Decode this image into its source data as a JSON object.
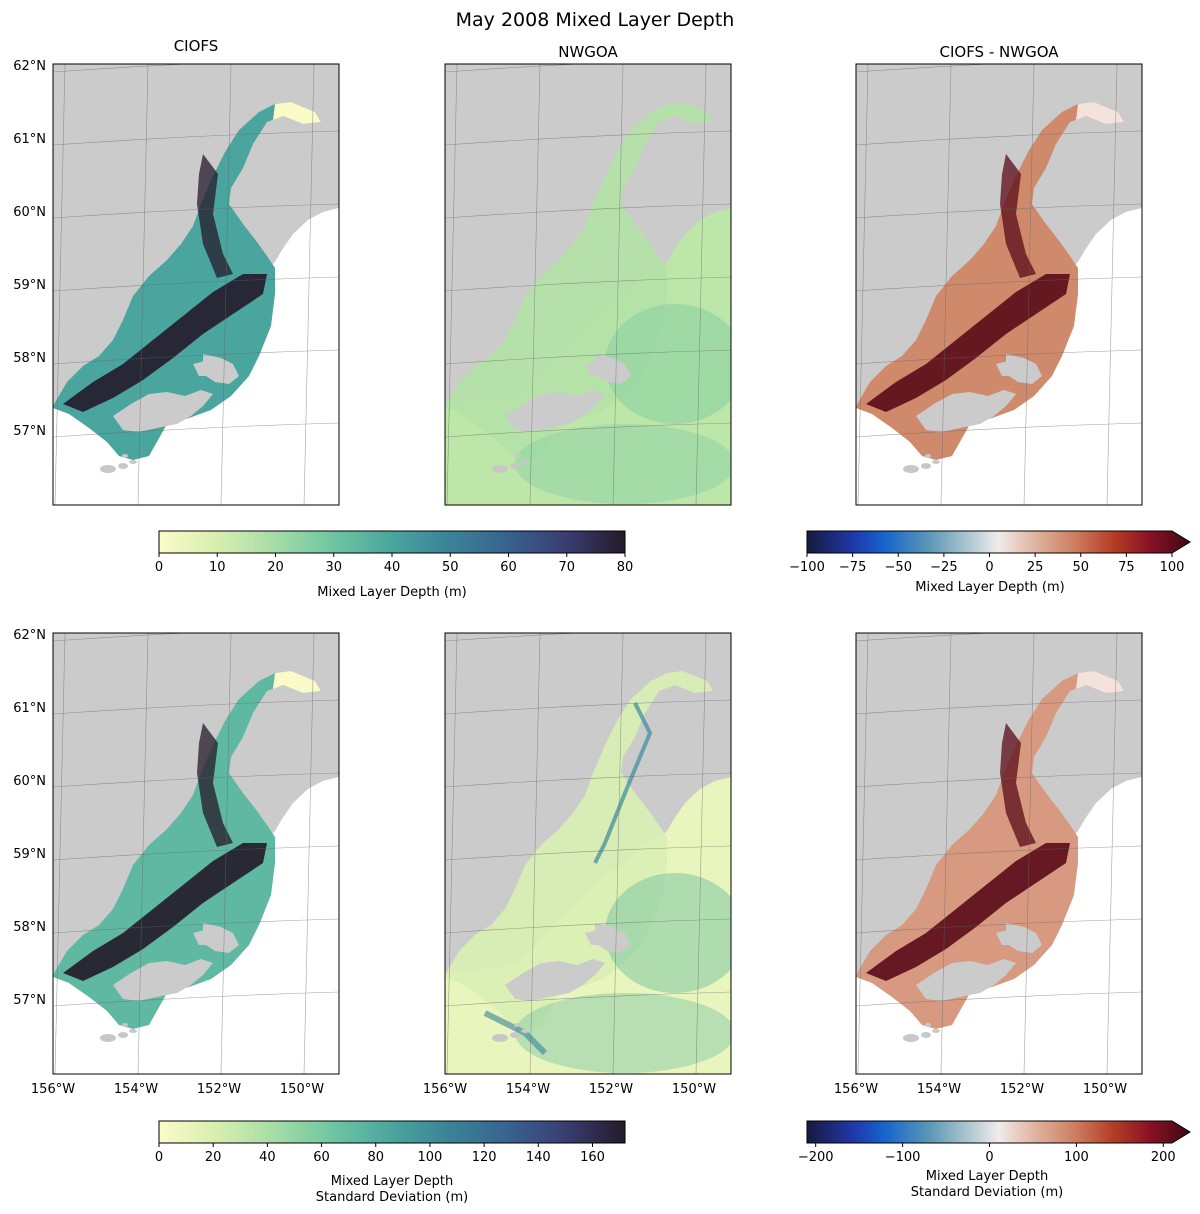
{
  "title": "May 2008 Mixed Layer Depth",
  "columns": [
    "CIOFS",
    "NWGOA",
    "CIOFS - NWGOA"
  ],
  "lat_labels": [
    "62°N",
    "61°N",
    "60°N",
    "59°N",
    "58°N",
    "57°N"
  ],
  "lon_labels": [
    "156°W",
    "154°W",
    "152°W",
    "150°W"
  ],
  "colors": {
    "land": "#cbcbcb",
    "ocean": "#ffffff",
    "seq_low": "#fbfbc9",
    "seq_high": "#241a29",
    "div_low": "#161a3f",
    "div_high": "#3c0912"
  },
  "colorbars": [
    {
      "id": "mld",
      "label": "Mixed Layer Depth (m)",
      "colormap": "deep",
      "ticks": [
        "0",
        "10",
        "20",
        "30",
        "40",
        "50",
        "60",
        "70",
        "80"
      ],
      "range": [
        0,
        80
      ],
      "extend": "neither"
    },
    {
      "id": "mld_diff",
      "label": "Mixed Layer Depth (m)",
      "colormap": "balance",
      "ticks": [
        "−100",
        "−75",
        "−50",
        "−25",
        "0",
        "25",
        "50",
        "75",
        "100"
      ],
      "range": [
        -100,
        100
      ],
      "extend": "max"
    },
    {
      "id": "sd",
      "label_lines": [
        "Mixed Layer Depth",
        "Standard Deviation (m)"
      ],
      "colormap": "deep",
      "ticks": [
        "0",
        "20",
        "40",
        "60",
        "80",
        "100",
        "120",
        "140",
        "160"
      ],
      "range": [
        0,
        172
      ],
      "extend": "neither"
    },
    {
      "id": "sd_diff",
      "label_lines": [
        "Mixed Layer Depth",
        "Standard Deviation (m)"
      ],
      "colormap": "balance",
      "ticks": [
        "−200",
        "−100",
        "0",
        "100",
        "200"
      ],
      "range": [
        -210,
        210
      ],
      "extend": "max"
    }
  ]
}
